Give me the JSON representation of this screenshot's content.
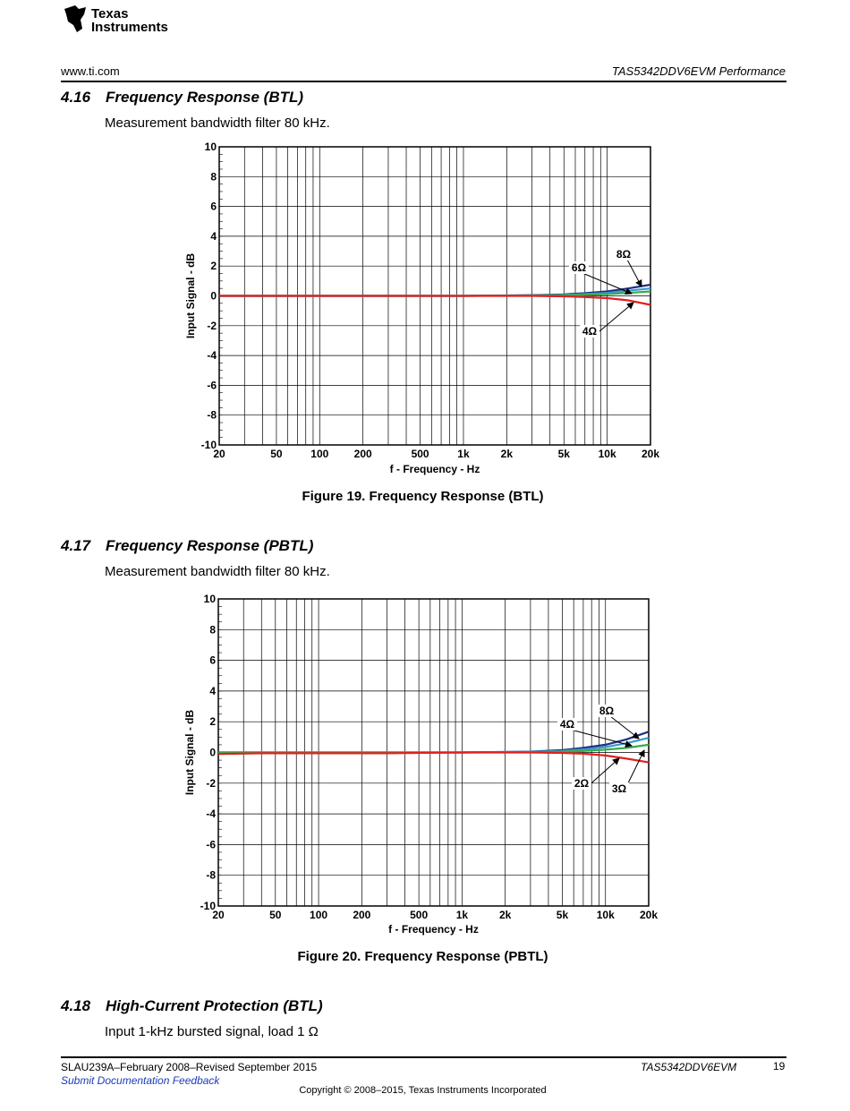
{
  "header": {
    "brand_line1": "Texas",
    "brand_line2": "Instruments",
    "website": "www.ti.com",
    "doc_section": "TAS5342DDV6EVM Performance"
  },
  "sections": [
    {
      "number": "4.16",
      "title": "Frequency Response (BTL)",
      "text": "Measurement bandwidth filter 80 kHz."
    },
    {
      "number": "4.17",
      "title": "Frequency Response (PBTL)",
      "text": "Measurement bandwidth filter 80 kHz."
    },
    {
      "number": "4.18",
      "title": "High-Current Protection (BTL)",
      "text": "Input 1-kHz bursted signal, load 1 Ω"
    }
  ],
  "figures": {
    "fig19_caption": "Figure 19. Frequency Response (BTL)",
    "fig20_caption": "Figure 20. Frequency Response (PBTL)"
  },
  "footer": {
    "doc_id": "SLAU239A–February 2008–Revised September 2015",
    "feedback_link": "Submit Documentation Feedback",
    "product": "TAS5342DDV6EVM",
    "page": "19",
    "copyright": "Copyright © 2008–2015, Texas Instruments Incorporated"
  },
  "chart_data": [
    {
      "type": "line",
      "xlabel": "f - Frequency - Hz",
      "ylabel": "Input Signal - dB",
      "x_scale": "log",
      "xlim": [
        20,
        20000
      ],
      "ylim": [
        -10,
        10
      ],
      "x_ticks": [
        20,
        50,
        100,
        200,
        500,
        1000,
        2000,
        5000,
        10000,
        20000
      ],
      "x_tick_labels": [
        "20",
        "50",
        "100",
        "200",
        "500",
        "1k",
        "2k",
        "5k",
        "10k",
        "20k"
      ],
      "y_ticks": [
        -10,
        -8,
        -6,
        -4,
        -2,
        0,
        2,
        4,
        6,
        8,
        10
      ],
      "y_tick_labels": [
        "-10",
        "-8",
        "-6",
        "-4",
        "-2",
        "0",
        "2",
        "4",
        "6",
        "8",
        "10"
      ],
      "grid": true,
      "series": [
        {
          "name": "8Ω",
          "color": "#1f2f80",
          "x": [
            20,
            1000,
            3000,
            5000,
            7000,
            10000,
            14000,
            20000
          ],
          "y": [
            0,
            0,
            0.05,
            0.1,
            0.18,
            0.3,
            0.5,
            0.75
          ]
        },
        {
          "name": "6Ω",
          "color": "#3a9ad0",
          "x": [
            20,
            1000,
            3000,
            5000,
            7000,
            10000,
            14000,
            20000
          ],
          "y": [
            0,
            0,
            0.03,
            0.07,
            0.12,
            0.2,
            0.35,
            0.5
          ]
        },
        {
          "name": "",
          "color": "#3aaa4a",
          "x": [
            20,
            1000,
            3000,
            5000,
            7000,
            10000,
            14000,
            20000
          ],
          "y": [
            0,
            0,
            0.02,
            0.04,
            0.07,
            0.12,
            0.2,
            0.3
          ]
        },
        {
          "name": "4Ω",
          "color": "#e02020",
          "x": [
            20,
            1000,
            3000,
            5000,
            7000,
            10000,
            14000,
            20000
          ],
          "y": [
            0,
            0,
            0,
            -0.03,
            -0.08,
            -0.15,
            -0.3,
            -0.6
          ]
        }
      ],
      "annotations": [
        {
          "text": "8Ω",
          "series": "8Ω"
        },
        {
          "text": "6Ω",
          "series": "6Ω"
        },
        {
          "text": "4Ω",
          "series": "4Ω"
        }
      ]
    },
    {
      "type": "line",
      "xlabel": "f - Frequency - Hz",
      "ylabel": "Input Signal - dB",
      "x_scale": "log",
      "xlim": [
        20,
        20000
      ],
      "ylim": [
        -10,
        10
      ],
      "x_ticks": [
        20,
        50,
        100,
        200,
        500,
        1000,
        2000,
        5000,
        10000,
        20000
      ],
      "x_tick_labels": [
        "20",
        "50",
        "100",
        "200",
        "500",
        "1k",
        "2k",
        "5k",
        "10k",
        "20k"
      ],
      "y_ticks": [
        -10,
        -8,
        -6,
        -4,
        -2,
        0,
        2,
        4,
        6,
        8,
        10
      ],
      "y_tick_labels": [
        "-10",
        "-8",
        "-6",
        "-4",
        "-2",
        "0",
        "2",
        "4",
        "6",
        "8",
        "10"
      ],
      "grid": true,
      "series": [
        {
          "name": "8Ω",
          "color": "#1f2f80",
          "x": [
            20,
            300,
            1000,
            3000,
            5000,
            7000,
            10000,
            14000,
            20000
          ],
          "y": [
            0,
            0,
            0,
            0.05,
            0.15,
            0.3,
            0.5,
            0.85,
            1.35
          ]
        },
        {
          "name": "4Ω",
          "color": "#3a9ad0",
          "x": [
            20,
            300,
            1000,
            3000,
            5000,
            7000,
            10000,
            14000,
            20000
          ],
          "y": [
            0,
            0,
            0,
            0.04,
            0.1,
            0.2,
            0.35,
            0.6,
            0.95
          ]
        },
        {
          "name": "3Ω",
          "color": "#3aaa4a",
          "x": [
            20,
            300,
            1000,
            3000,
            5000,
            7000,
            10000,
            14000,
            20000
          ],
          "y": [
            0,
            0,
            0,
            0.02,
            0.05,
            0.1,
            0.18,
            0.3,
            0.5
          ]
        },
        {
          "name": "2Ω",
          "color": "#e02020",
          "x": [
            20,
            40,
            300,
            1000,
            3000,
            5000,
            7000,
            10000,
            14000,
            20000
          ],
          "y": [
            -0.1,
            -0.05,
            -0.05,
            0,
            0,
            -0.03,
            -0.08,
            -0.2,
            -0.4,
            -0.65
          ]
        }
      ],
      "annotations": [
        {
          "text": "8Ω",
          "series": "8Ω"
        },
        {
          "text": "4Ω",
          "series": "4Ω"
        },
        {
          "text": "2Ω",
          "series": "2Ω"
        },
        {
          "text": "3Ω",
          "series": "3Ω"
        }
      ]
    }
  ]
}
